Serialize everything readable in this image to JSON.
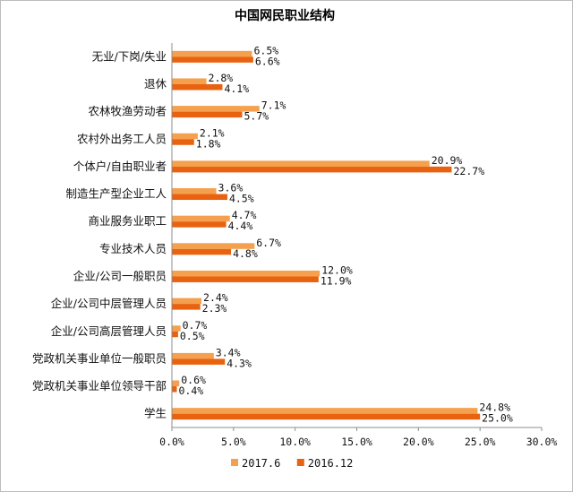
{
  "chart_data": {
    "type": "bar",
    "orientation": "horizontal",
    "title": "中国网民职业结构",
    "categories": [
      "无业/下岗/失业",
      "退休",
      "农林牧渔劳动者",
      "农村外出务工人员",
      "个体户/自由职业者",
      "制造生产型企业工人",
      "商业服务业职工",
      "专业技术人员",
      "企业/公司一般职员",
      "企业/公司中层管理人员",
      "企业/公司高层管理人员",
      "党政机关事业单位一般职员",
      "党政机关事业单位领导干部",
      "学生"
    ],
    "series": [
      {
        "name": "2017.6",
        "color": "#f5a04e",
        "values": [
          6.5,
          2.8,
          7.1,
          2.1,
          20.9,
          3.6,
          4.7,
          6.7,
          12.0,
          2.4,
          0.7,
          3.4,
          0.6,
          24.8
        ],
        "labels": [
          "6.5%",
          "2.8%",
          "7.1%",
          "2.1%",
          "20.9%",
          "3.6%",
          "4.7%",
          "6.7%",
          "12.0%",
          "2.4%",
          "0.7%",
          "3.4%",
          "0.6%",
          "24.8%"
        ]
      },
      {
        "name": "2016.12",
        "color": "#e8620f",
        "values": [
          6.6,
          4.1,
          5.7,
          1.8,
          22.7,
          4.5,
          4.4,
          4.8,
          11.9,
          2.3,
          0.5,
          4.3,
          0.4,
          25.0
        ],
        "labels": [
          "6.6%",
          "4.1%",
          "5.7%",
          "1.8%",
          "22.7%",
          "4.5%",
          "4.4%",
          "4.8%",
          "11.9%",
          "2.3%",
          "0.5%",
          "4.3%",
          "0.4%",
          "25.0%"
        ]
      }
    ],
    "xlim": [
      0,
      30
    ],
    "xticks": [
      0,
      5,
      10,
      15,
      20,
      25,
      30
    ],
    "xtick_labels": [
      "0.0%",
      "5.0%",
      "10.0%",
      "15.0%",
      "20.0%",
      "25.0%",
      "30.0%"
    ],
    "grid": false,
    "legend_position": "bottom"
  }
}
